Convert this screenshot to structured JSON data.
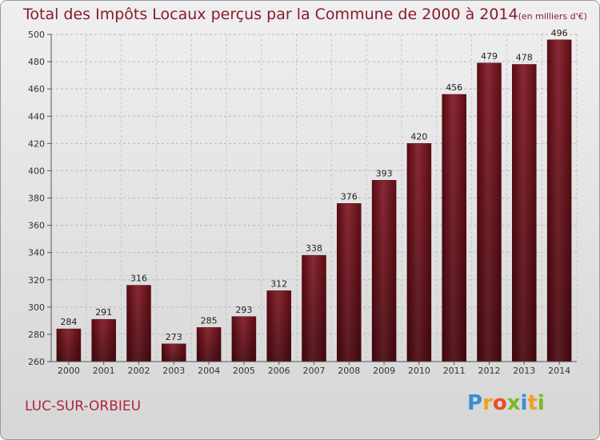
{
  "chart_data": {
    "type": "bar",
    "title": "Total des Impôts Locaux perçus par la Commune de 2000 à 2014",
    "unit": "(en milliers d'€)",
    "categories": [
      "2000",
      "2001",
      "2002",
      "2003",
      "2004",
      "2005",
      "2006",
      "2007",
      "2008",
      "2009",
      "2010",
      "2011",
      "2012",
      "2013",
      "2014"
    ],
    "values": [
      284,
      291,
      316,
      273,
      285,
      293,
      312,
      338,
      376,
      393,
      420,
      456,
      479,
      478,
      496
    ],
    "ylim": [
      260,
      500
    ],
    "yticks": [
      260,
      280,
      300,
      320,
      340,
      360,
      380,
      400,
      420,
      440,
      460,
      480,
      500
    ],
    "grid": true,
    "bar_color": "#7a1a24"
  },
  "commune": "LUC-SUR-ORBIEU",
  "logo": {
    "text": "Proxiti",
    "letters": [
      {
        "ch": "P",
        "color": "#3a8fd0"
      },
      {
        "ch": "r",
        "color": "#f0a020"
      },
      {
        "ch": "o",
        "color": "#e8501e"
      },
      {
        "ch": "x",
        "color": "#79b829"
      },
      {
        "ch": "i",
        "color": "#3a8fd0"
      },
      {
        "ch": "t",
        "color": "#f0a020"
      },
      {
        "ch": "i",
        "color": "#79b829"
      }
    ]
  }
}
